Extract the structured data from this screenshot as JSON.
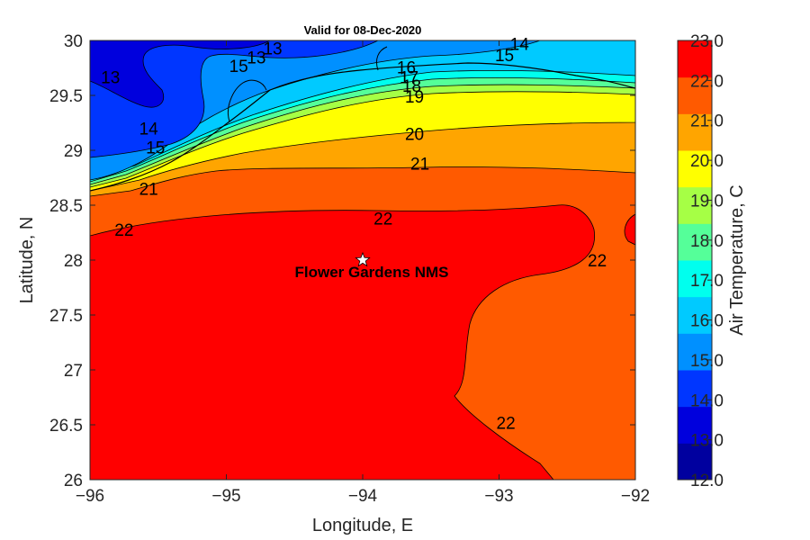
{
  "chart_data": {
    "type": "heatmap",
    "title": "Valid for 08-Dec-2020",
    "xlabel": "Longitude, E",
    "ylabel": "Latitude, N",
    "xlim": [
      -96,
      -92
    ],
    "ylim": [
      26,
      30
    ],
    "x_ticks": [
      "-96",
      "-95",
      "-94",
      "-93",
      "-92"
    ],
    "y_ticks": [
      "26",
      "26.5",
      "27",
      "27.5",
      "28",
      "28.5",
      "29",
      "29.5",
      "30"
    ],
    "colorbar": {
      "label": "Air Temperature, C",
      "range": [
        12,
        23
      ],
      "tick_labels": [
        "12.0",
        "13.0",
        "14.0",
        "15.0",
        "16.0",
        "17.0",
        "18.0",
        "19.0",
        "20.0",
        "21.0",
        "22.0",
        "23.0"
      ],
      "colors": [
        "#00009f",
        "#0000dd",
        "#0036ff",
        "#0090ff",
        "#00caff",
        "#00ffee",
        "#55ff99",
        "#a6ff45",
        "#ffff00",
        "#ffa500",
        "#ff5a00",
        "#ff0000"
      ]
    },
    "contour_labels": [
      {
        "text": "13",
        "lon": -95.85,
        "lat": 29.67
      },
      {
        "text": "13",
        "lon": -94.66,
        "lat": 29.93
      },
      {
        "text": "13",
        "lon": -94.78,
        "lat": 29.85
      },
      {
        "text": "15",
        "lon": -94.91,
        "lat": 29.77
      },
      {
        "text": "14",
        "lon": -92.85,
        "lat": 29.97
      },
      {
        "text": "15",
        "lon": -92.96,
        "lat": 29.87
      },
      {
        "text": "16",
        "lon": -93.68,
        "lat": 29.76
      },
      {
        "text": "17",
        "lon": -93.66,
        "lat": 29.67
      },
      {
        "text": "18",
        "lon": -93.64,
        "lat": 29.59
      },
      {
        "text": "19",
        "lon": -93.62,
        "lat": 29.49
      },
      {
        "text": "20",
        "lon": -93.62,
        "lat": 29.15
      },
      {
        "text": "21",
        "lon": -93.58,
        "lat": 28.88
      },
      {
        "text": "22",
        "lon": -93.85,
        "lat": 28.38
      },
      {
        "text": "22",
        "lon": -95.75,
        "lat": 28.28
      },
      {
        "text": "22",
        "lon": -92.28,
        "lat": 28.0
      },
      {
        "text": "22",
        "lon": -92.95,
        "lat": 26.52
      },
      {
        "text": "14",
        "lon": -95.57,
        "lat": 29.2
      },
      {
        "text": "15",
        "lon": -95.52,
        "lat": 29.03
      },
      {
        "text": "21",
        "lon": -95.57,
        "lat": 28.65
      }
    ],
    "site": {
      "name": "Flower Gardens NMS",
      "lon": -94.0,
      "lat": 28.0
    }
  }
}
